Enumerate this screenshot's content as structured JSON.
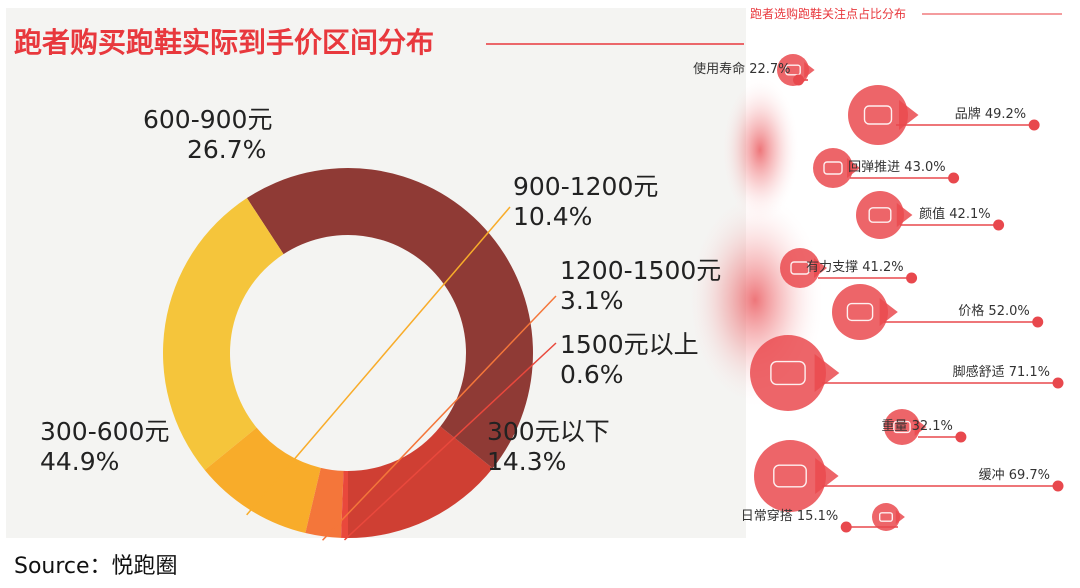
{
  "source": "Source：悦跑圈",
  "colors": {
    "title_red": "#e8383d",
    "accent_red": "#e8484d",
    "panel_bg": "#f4f4f2",
    "right_bg": "#ffffff"
  },
  "chart_data": [
    {
      "type": "pie",
      "title": "跑者购买跑鞋实际到手价区间分布",
      "donut": true,
      "slices": [
        {
          "label": "300元以下",
          "value": 14.3,
          "value_label": "14.3%",
          "color": "#cf3f33"
        },
        {
          "label": "300-600元",
          "value": 44.9,
          "value_label": "44.9%",
          "color": "#8f3a35"
        },
        {
          "label": "600-900元",
          "value": 26.7,
          "value_label": "26.7%",
          "color": "#f5c53b"
        },
        {
          "label": "900-1200元",
          "value": 10.4,
          "value_label": "10.4%",
          "color": "#f8ac2a"
        },
        {
          "label": "1200-1500元",
          "value": 3.1,
          "value_label": "3.1%",
          "color": "#f4763a"
        },
        {
          "label": "1500元以上",
          "value": 0.6,
          "value_label": "0.6%",
          "color": "#e9483c"
        }
      ]
    },
    {
      "type": "bar",
      "title": "跑者选购跑鞋关注点占比分布",
      "unit": "%",
      "categories": [
        "使用寿命",
        "品牌",
        "回弹推进",
        "颜值",
        "有力支撑",
        "价格",
        "脚感舒适",
        "重量",
        "缓冲",
        "日常穿搭"
      ],
      "values": [
        22.7,
        49.2,
        43.0,
        42.1,
        41.2,
        52.0,
        71.1,
        32.1,
        69.7,
        15.1
      ],
      "labels": [
        "使用寿命 22.7%",
        "品牌 49.2%",
        "回弹推进 43.0%",
        "颜值 42.1%",
        "有力支撑 41.2%",
        "价格 52.0%",
        "脚感舒适 71.1%",
        "重量 32.1%",
        "缓冲 69.7%",
        "日常穿搭 15.1%"
      ],
      "icons": [
        "shoe-sole-icon",
        "badge-star-icon",
        "shoe-spring-icon",
        "shoe-icon",
        "shoe-support-icon",
        "yen-card-icon",
        "feet-icon",
        "weight-bag-icon",
        "cushion-shoe-icon",
        "casual-shoe-icon"
      ]
    }
  ]
}
